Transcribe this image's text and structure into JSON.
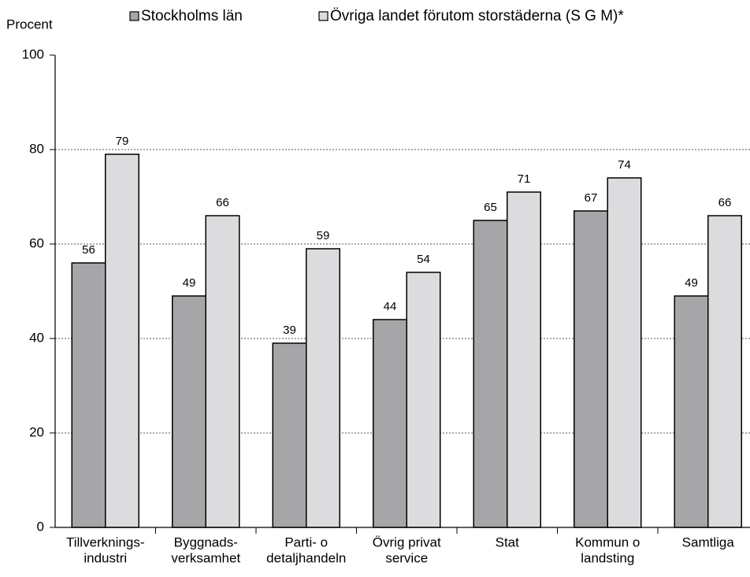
{
  "chart_data": {
    "type": "bar",
    "ylabel": "Procent",
    "categories": [
      [
        "Tillverknings-",
        "industri"
      ],
      [
        "Byggnads-",
        "verksamhet"
      ],
      [
        "Parti- o",
        "detaljhandeln"
      ],
      [
        "Övrig privat",
        "service"
      ],
      [
        "Stat"
      ],
      [
        "Kommun o",
        "landsting"
      ],
      [
        "Samtliga"
      ]
    ],
    "series": [
      {
        "name": "Stockholms län",
        "color": "#a6a6a8",
        "values": [
          56,
          49,
          39,
          44,
          65,
          67,
          49
        ]
      },
      {
        "name": "Övriga landet förutom storstäderna (S G M)*",
        "color": "#dcdcde",
        "values": [
          79,
          66,
          59,
          54,
          71,
          74,
          66
        ]
      }
    ],
    "ylim": [
      0,
      100
    ],
    "yticks": [
      0,
      20,
      40,
      60,
      80,
      100
    ],
    "grid": true
  }
}
